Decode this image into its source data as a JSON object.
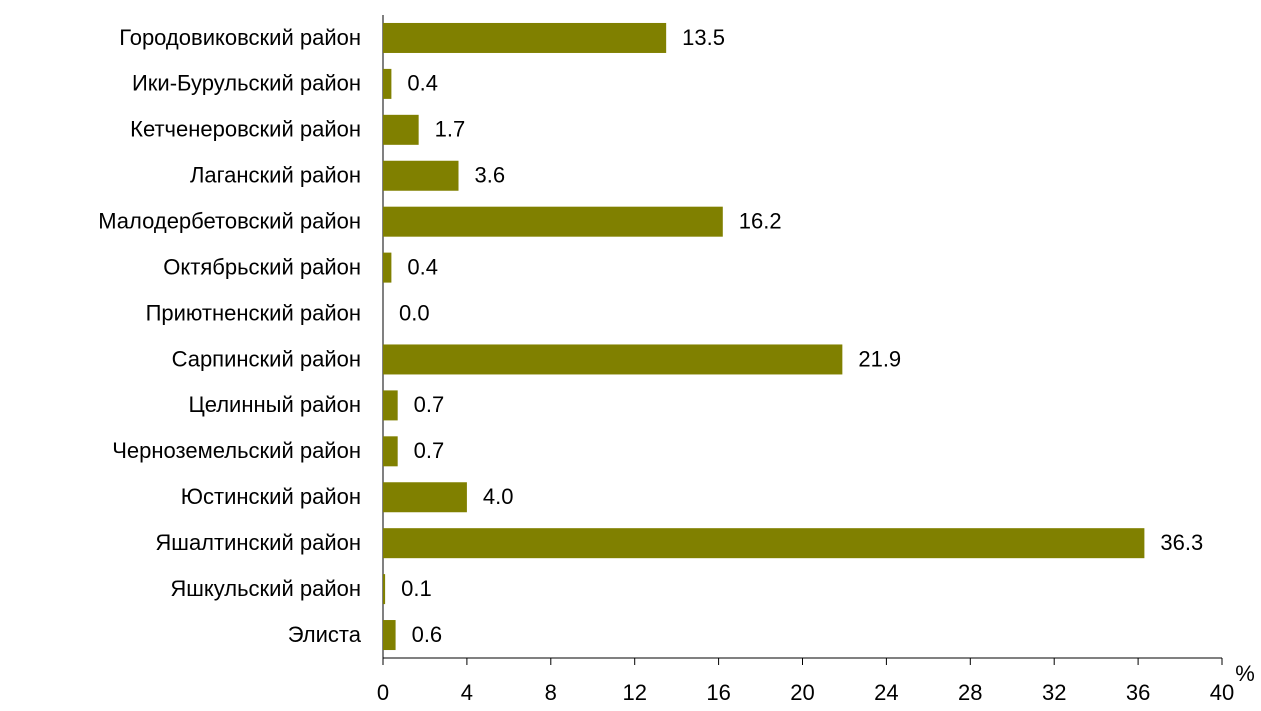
{
  "chart_data": {
    "type": "barh",
    "categories": [
      "Городовиковский район",
      "Ики-Бурульский район",
      "Кетченеровский район",
      "Лаганский район",
      "Малодербетовский район",
      "Октябрьский район",
      "Приютненский район",
      "Сарпинский район",
      "Целинный район",
      "Черноземельский район",
      "Юстинский район",
      "Яшалтинский район",
      "Яшкульский район",
      "Элиста"
    ],
    "values": [
      13.5,
      0.4,
      1.7,
      3.6,
      16.2,
      0.4,
      0.0,
      21.9,
      0.7,
      0.7,
      4.0,
      36.3,
      0.1,
      0.6
    ],
    "value_labels": [
      "13.5",
      "0.4",
      "1.7",
      "3.6",
      "16.2",
      "0.4",
      "0.0",
      "21.9",
      "0.7",
      "0.7",
      "4.0",
      "36.3",
      "0.1",
      "0.6"
    ],
    "color": "#808000",
    "x_label": "%",
    "xlim": [
      0,
      40
    ],
    "xticks": [
      0,
      4,
      8,
      12,
      16,
      20,
      24,
      28,
      32,
      36,
      40
    ]
  }
}
